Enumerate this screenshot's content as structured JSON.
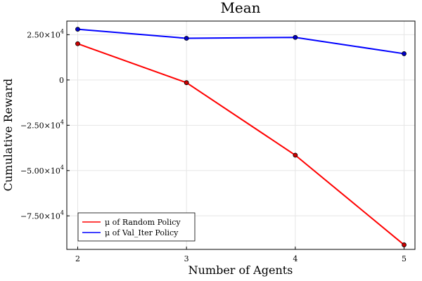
{
  "chart_data": {
    "type": "line",
    "title": "Mean",
    "xlabel": "Number of Agents",
    "ylabel": "Cumulative Reward",
    "x": [
      2,
      3,
      4,
      5
    ],
    "xticks": [
      2,
      3,
      4,
      5
    ],
    "xlim": [
      1.9,
      5.1
    ],
    "ylim": [
      -93500,
      32500
    ],
    "yticks": [
      {
        "value": 25000,
        "mantissa": "2.50",
        "exp": "4"
      },
      {
        "value": 0,
        "mantissa": "0",
        "exp": ""
      },
      {
        "value": -25000,
        "mantissa": "−2.50",
        "exp": "4"
      },
      {
        "value": -50000,
        "mantissa": "−5.00",
        "exp": "4"
      },
      {
        "value": -75000,
        "mantissa": "−7.50",
        "exp": "4"
      }
    ],
    "grid": true,
    "legend_position": "bottom-left",
    "series": [
      {
        "name": "μ of Random Policy",
        "color": "#ff0000",
        "marker_color": "#cc0000",
        "values": [
          20000,
          -1500,
          -41500,
          -91000
        ]
      },
      {
        "name": "μ of Val_Iter Policy",
        "color": "#0000ff",
        "marker_color": "#0000cc",
        "values": [
          28000,
          23000,
          23500,
          14500
        ]
      }
    ]
  }
}
